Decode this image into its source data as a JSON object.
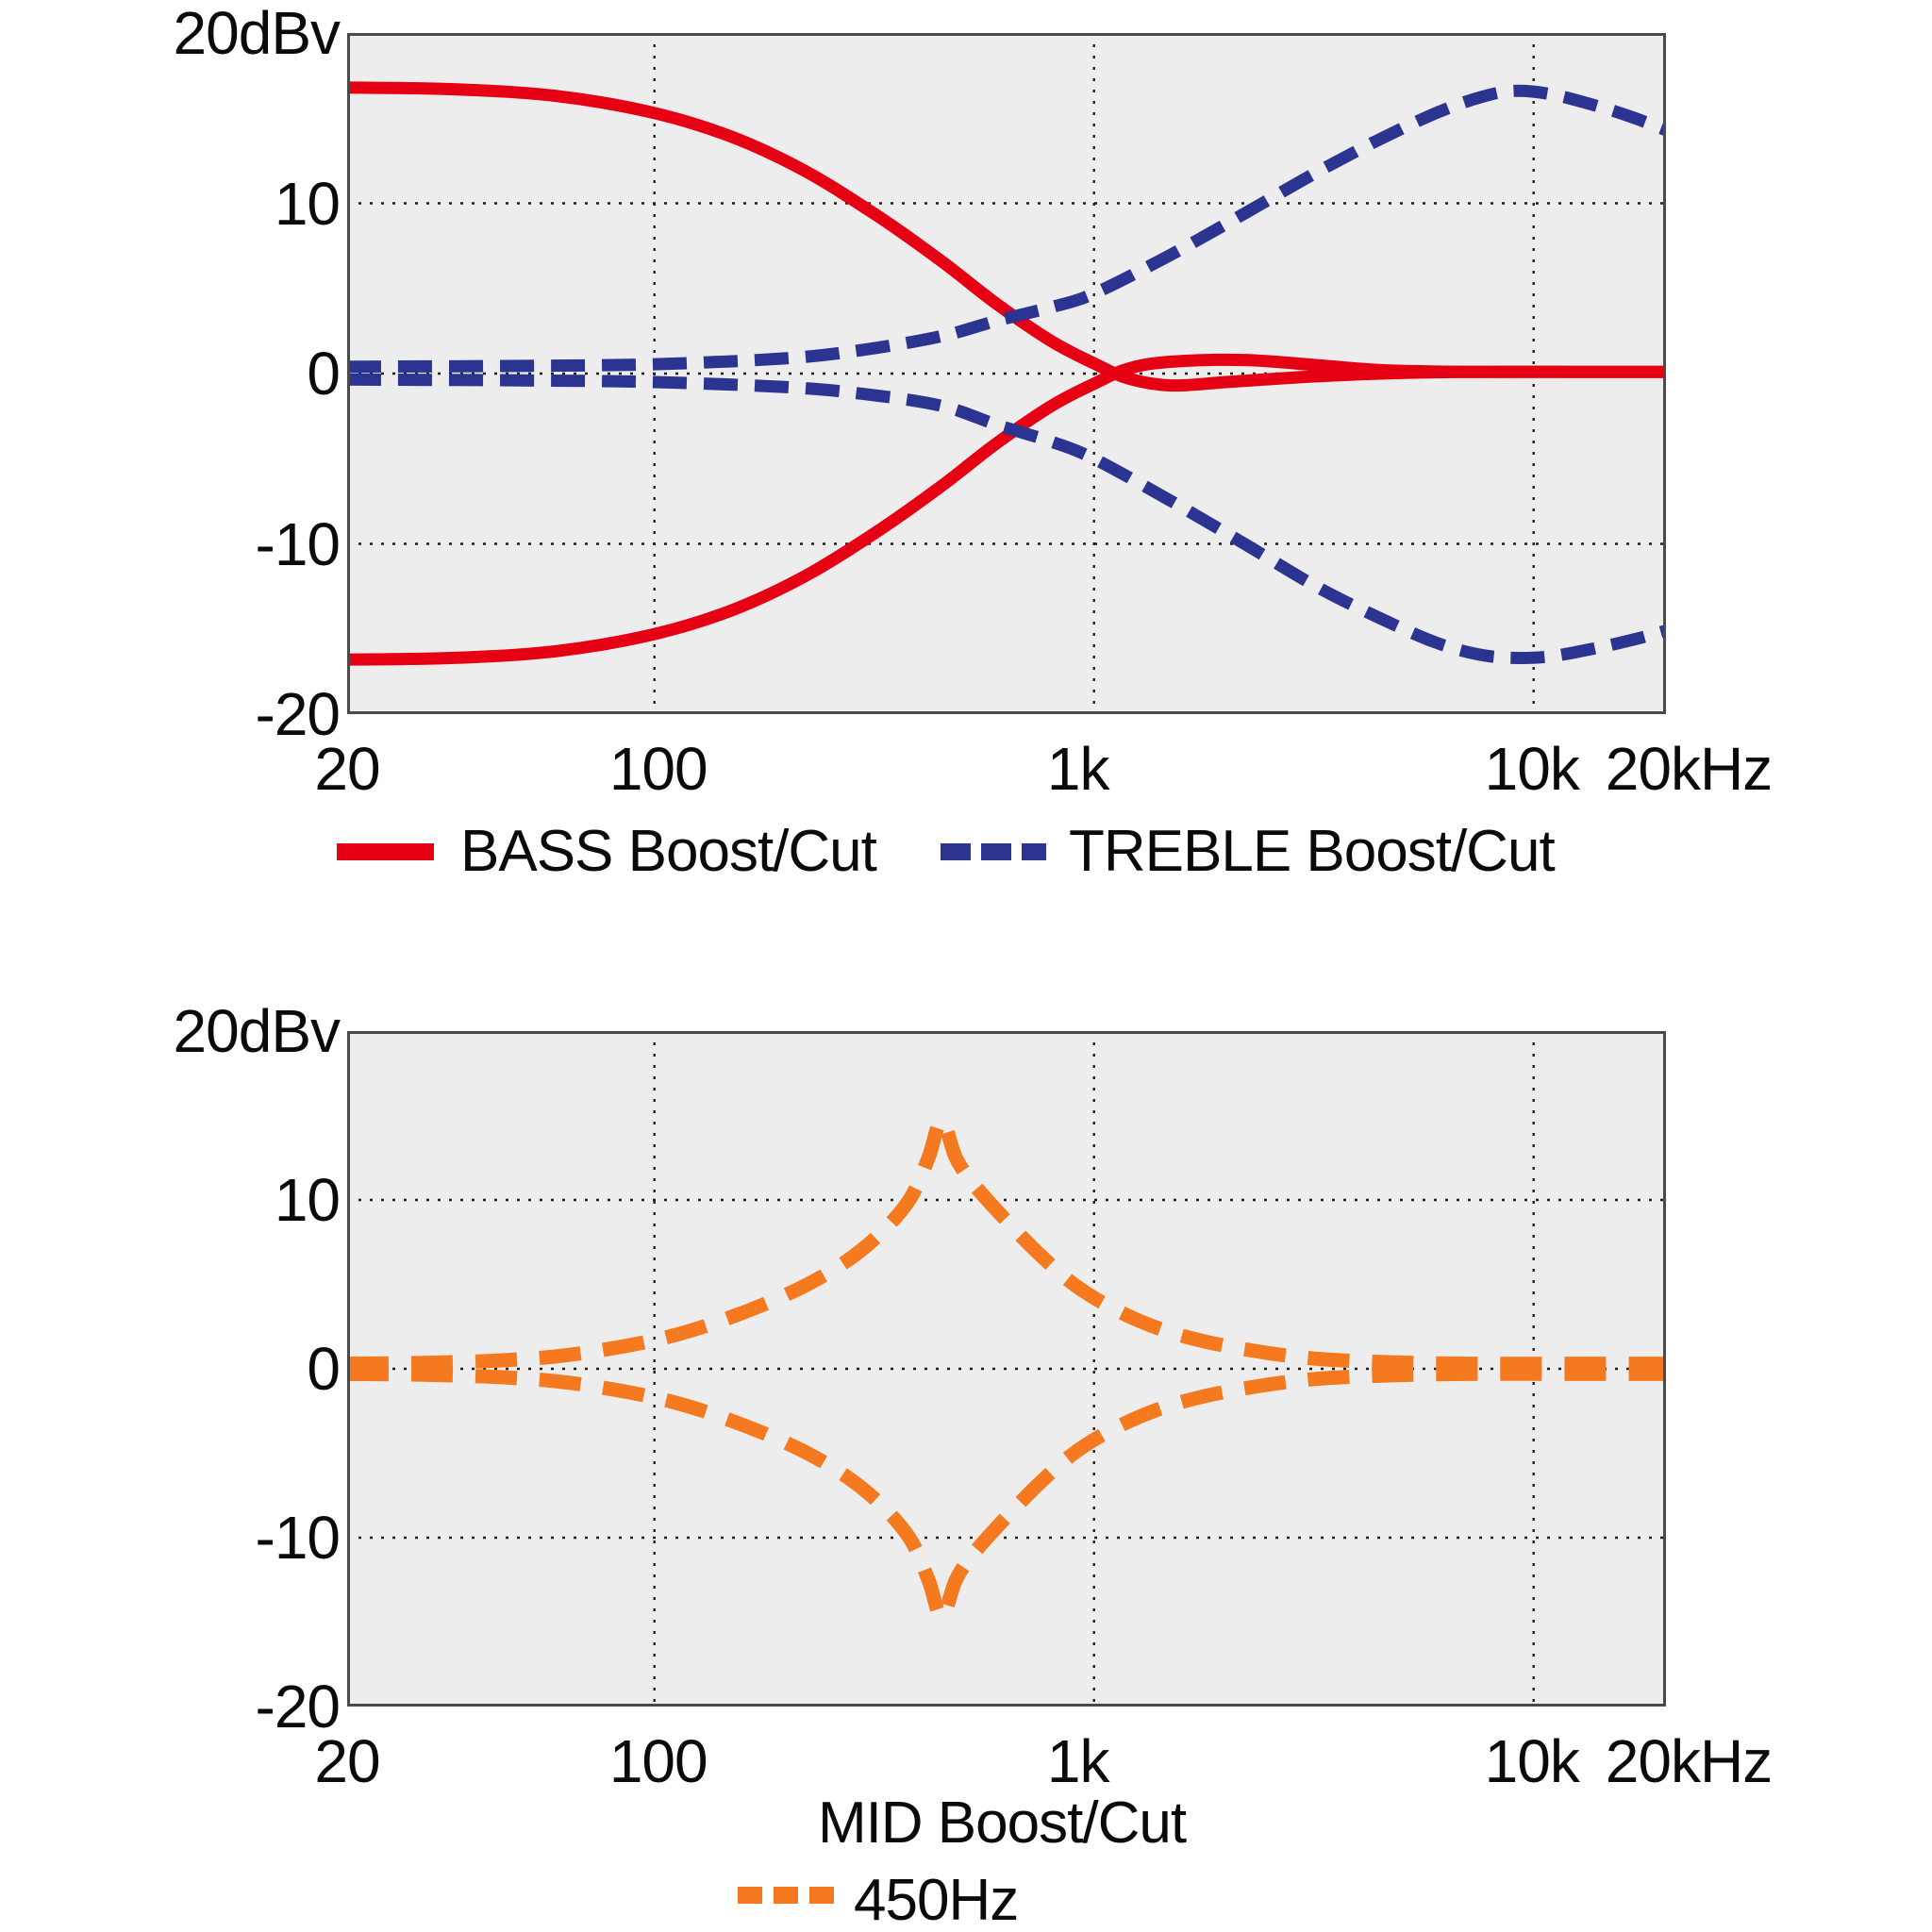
{
  "colors": {
    "bass_red": "#e60014",
    "treble_blue": "#2b3591",
    "mid_orange": "#f4791f",
    "plot_background": "#ededed",
    "frame": "#4a4a4a",
    "grid": "#1f1f1f",
    "text": "#0a0a0a"
  },
  "chart_data": [
    {
      "type": "line",
      "title": "",
      "x_scale": "log",
      "x_unit": "Hz",
      "y_unit": "dBv",
      "x_range": [
        20,
        20000
      ],
      "y_range": [
        -20,
        20
      ],
      "grid": "dotted",
      "legend_position": "below",
      "y_ticks": [
        {
          "value": 20,
          "label": "20dBv",
          "grid": false
        },
        {
          "value": 10,
          "label": "10",
          "grid": true
        },
        {
          "value": 0,
          "label": "0",
          "grid": true
        },
        {
          "value": -10,
          "label": "-10",
          "grid": true
        },
        {
          "value": -20,
          "label": "-20",
          "grid": false
        }
      ],
      "x_ticks": [
        {
          "value": 20,
          "label": "20",
          "grid": false,
          "dx": 0
        },
        {
          "value": 100,
          "label": "100",
          "grid": true,
          "dx": 4
        },
        {
          "value": 1000,
          "label": "1k",
          "grid": true,
          "dx": -17
        },
        {
          "value": 10000,
          "label": "10k",
          "grid": true,
          "dx": -2
        },
        {
          "value": 20000,
          "label": "20kHz",
          "grid": false,
          "dx": 24
        }
      ],
      "legend": [
        {
          "label": "BASS Boost/Cut",
          "color": "#e60014",
          "style": "solid"
        },
        {
          "label": "TREBLE Boost/Cut",
          "color": "#2b3591",
          "style": "dashed"
        }
      ],
      "series": [
        {
          "name": "BASS Boost",
          "color": "#e60014",
          "dash": false,
          "points": [
            [
              20,
              16.8
            ],
            [
              35,
              16.7
            ],
            [
              60,
              16.3
            ],
            [
              100,
              15.3
            ],
            [
              150,
              13.9
            ],
            [
              220,
              11.9
            ],
            [
              320,
              9.3
            ],
            [
              450,
              6.6
            ],
            [
              600,
              4.1
            ],
            [
              800,
              1.9
            ],
            [
              1000,
              0.6
            ],
            [
              1200,
              -0.3
            ],
            [
              1500,
              -0.7
            ],
            [
              2000,
              -0.5
            ],
            [
              3000,
              -0.2
            ],
            [
              4500,
              0.0
            ],
            [
              7000,
              0.1
            ],
            [
              12000,
              0.1
            ],
            [
              20000,
              0.1
            ]
          ]
        },
        {
          "name": "BASS Cut",
          "color": "#e60014",
          "dash": false,
          "points": [
            [
              20,
              -16.8
            ],
            [
              35,
              -16.7
            ],
            [
              60,
              -16.3
            ],
            [
              100,
              -15.3
            ],
            [
              150,
              -13.9
            ],
            [
              220,
              -11.9
            ],
            [
              320,
              -9.3
            ],
            [
              450,
              -6.6
            ],
            [
              600,
              -4.1
            ],
            [
              800,
              -1.9
            ],
            [
              1000,
              -0.6
            ],
            [
              1200,
              0.3
            ],
            [
              1500,
              0.7
            ],
            [
              2200,
              0.8
            ],
            [
              3200,
              0.5
            ],
            [
              4500,
              0.2
            ],
            [
              7000,
              0.1
            ],
            [
              12000,
              0.1
            ],
            [
              20000,
              0.1
            ]
          ]
        },
        {
          "name": "TREBLE Boost",
          "color": "#2b3591",
          "dash": true,
          "points": [
            [
              20,
              0.4
            ],
            [
              50,
              0.45
            ],
            [
              100,
              0.55
            ],
            [
              200,
              0.9
            ],
            [
              300,
              1.4
            ],
            [
              450,
              2.2
            ],
            [
              600,
              3.1
            ],
            [
              800,
              3.9
            ],
            [
              1000,
              4.7
            ],
            [
              1500,
              7.0
            ],
            [
              2200,
              9.4
            ],
            [
              3200,
              11.8
            ],
            [
              4500,
              13.8
            ],
            [
              6000,
              15.3
            ],
            [
              7500,
              16.2
            ],
            [
              9000,
              16.6
            ],
            [
              11000,
              16.4
            ],
            [
              14000,
              15.7
            ],
            [
              17000,
              15.0
            ],
            [
              20000,
              14.3
            ]
          ]
        },
        {
          "name": "TREBLE Cut",
          "color": "#2b3591",
          "dash": true,
          "points": [
            [
              20,
              -0.35
            ],
            [
              50,
              -0.4
            ],
            [
              100,
              -0.5
            ],
            [
              200,
              -0.8
            ],
            [
              300,
              -1.2
            ],
            [
              450,
              -1.9
            ],
            [
              600,
              -3.0
            ],
            [
              800,
              -4.0
            ],
            [
              1000,
              -5.0
            ],
            [
              1500,
              -7.5
            ],
            [
              2200,
              -10.0
            ],
            [
              3200,
              -12.5
            ],
            [
              4500,
              -14.4
            ],
            [
              6000,
              -15.8
            ],
            [
              7500,
              -16.5
            ],
            [
              9000,
              -16.7
            ],
            [
              11000,
              -16.6
            ],
            [
              14000,
              -16.1
            ],
            [
              17000,
              -15.6
            ],
            [
              20000,
              -15.1
            ]
          ]
        }
      ]
    },
    {
      "type": "line",
      "title": "MID Boost/Cut",
      "x_scale": "log",
      "x_unit": "Hz",
      "y_unit": "dBv",
      "x_range": [
        20,
        20000
      ],
      "y_range": [
        -20,
        20
      ],
      "grid": "dotted",
      "legend_position": "below",
      "y_ticks": [
        {
          "value": 20,
          "label": "20dBv",
          "grid": false
        },
        {
          "value": 10,
          "label": "10",
          "grid": true
        },
        {
          "value": 0,
          "label": "0",
          "grid": true
        },
        {
          "value": -10,
          "label": "-10",
          "grid": true
        },
        {
          "value": -20,
          "label": "-20",
          "grid": false
        }
      ],
      "x_ticks": [
        {
          "value": 20,
          "label": "20",
          "grid": false,
          "dx": 0
        },
        {
          "value": 100,
          "label": "100",
          "grid": true,
          "dx": 4
        },
        {
          "value": 1000,
          "label": "1k",
          "grid": true,
          "dx": -17
        },
        {
          "value": 10000,
          "label": "10k",
          "grid": true,
          "dx": -2
        },
        {
          "value": 20000,
          "label": "20kHz",
          "grid": false,
          "dx": 24
        }
      ],
      "legend": [
        {
          "label": "450Hz",
          "color": "#f4791f",
          "style": "dashed"
        }
      ],
      "series": [
        {
          "name": "MID Boost 450Hz",
          "color": "#f4791f",
          "dash": true,
          "points": [
            [
              20,
              0.3
            ],
            [
              30,
              0.35
            ],
            [
              45,
              0.5
            ],
            [
              65,
              0.85
            ],
            [
              100,
              1.7
            ],
            [
              140,
              2.8
            ],
            [
              200,
              4.4
            ],
            [
              260,
              6.0
            ],
            [
              320,
              7.8
            ],
            [
              380,
              10.0
            ],
            [
              420,
              12.5
            ],
            [
              450,
              14.7
            ],
            [
              485,
              12.5
            ],
            [
              530,
              11.0
            ],
            [
              620,
              9.0
            ],
            [
              750,
              6.8
            ],
            [
              900,
              5.0
            ],
            [
              1100,
              3.6
            ],
            [
              1400,
              2.4
            ],
            [
              1800,
              1.6
            ],
            [
              2400,
              1.0
            ],
            [
              3200,
              0.6
            ],
            [
              4500,
              0.4
            ],
            [
              7000,
              0.3
            ],
            [
              12000,
              0.3
            ],
            [
              20000,
              0.3
            ]
          ]
        },
        {
          "name": "MID Cut 450Hz",
          "color": "#f4791f",
          "dash": true,
          "points": [
            [
              20,
              -0.3
            ],
            [
              30,
              -0.35
            ],
            [
              45,
              -0.5
            ],
            [
              65,
              -0.85
            ],
            [
              100,
              -1.7
            ],
            [
              140,
              -2.8
            ],
            [
              200,
              -4.4
            ],
            [
              260,
              -6.0
            ],
            [
              320,
              -7.8
            ],
            [
              380,
              -10.0
            ],
            [
              420,
              -12.5
            ],
            [
              450,
              -14.7
            ],
            [
              485,
              -12.5
            ],
            [
              530,
              -11.0
            ],
            [
              620,
              -9.0
            ],
            [
              750,
              -6.8
            ],
            [
              900,
              -5.0
            ],
            [
              1100,
              -3.6
            ],
            [
              1400,
              -2.4
            ],
            [
              1800,
              -1.6
            ],
            [
              2400,
              -1.0
            ],
            [
              3200,
              -0.6
            ],
            [
              4500,
              -0.4
            ],
            [
              7000,
              -0.3
            ],
            [
              12000,
              -0.3
            ],
            [
              20000,
              -0.3
            ]
          ]
        }
      ]
    }
  ]
}
